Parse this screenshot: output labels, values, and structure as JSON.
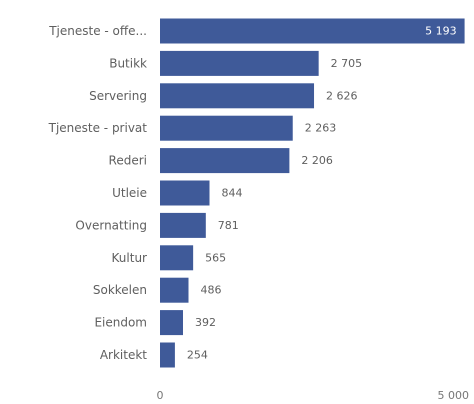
{
  "chart_data": {
    "type": "bar",
    "orientation": "horizontal",
    "categories": [
      "Tjeneste - offe...",
      "Butikk",
      "Servering",
      "Tjeneste - privat",
      "Rederi",
      "Utleie",
      "Overnatting",
      "Kultur",
      "Sokkelen",
      "Eiendom",
      "Arkitekt"
    ],
    "values": [
      5193,
      2705,
      2626,
      2263,
      2206,
      844,
      781,
      565,
      486,
      392,
      254
    ],
    "value_labels": [
      "5 193",
      "2 705",
      "2 626",
      "2 263",
      "2 206",
      "844",
      "781",
      "565",
      "486",
      "392",
      "254"
    ],
    "xlim": [
      0,
      5200
    ],
    "x_ticks": [
      0,
      5000
    ],
    "x_tick_labels": [
      "0",
      "5 000"
    ],
    "grid": false,
    "legend": "none",
    "title": "",
    "xlabel": "",
    "ylabel": "",
    "colors": {
      "bar": "#3f5a99",
      "label": "#5f5f5f",
      "value_inside": "#ffffff"
    }
  }
}
